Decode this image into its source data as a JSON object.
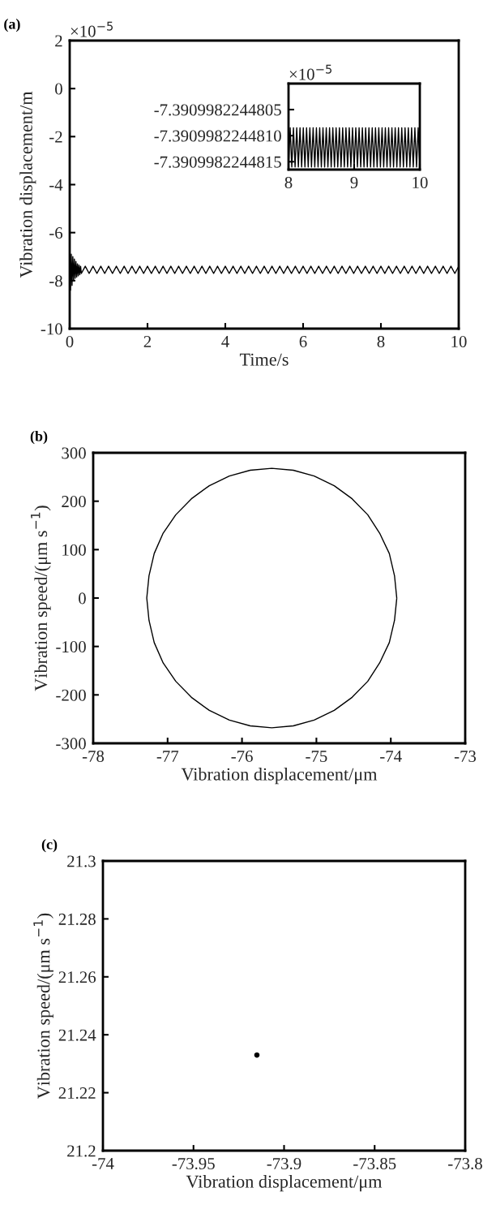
{
  "chart_data": [
    {
      "type": "line",
      "title": "(a)",
      "xlabel": "Time/s",
      "ylabel": "Vibration displacement/m",
      "annotations": [
        "×10$^{−5}$"
      ],
      "xlim": [
        0,
        10
      ],
      "xticks": [
        0,
        2,
        4,
        6,
        8,
        10
      ],
      "ylim": [
        -10,
        2
      ],
      "yticks": [
        -10,
        -8,
        -6,
        -4,
        -2,
        0,
        2
      ],
      "grid": false,
      "series": [
        {
          "color": "#000000",
          "x": [
            0,
            0.02,
            0.04,
            0.06,
            0.08,
            0.1,
            0.12,
            0.14,
            0.16,
            0.18,
            0.2,
            0.22,
            0.24,
            0.26,
            0.28,
            0.3,
            0.4,
            0.5,
            0.6,
            0.7,
            0.8,
            0.9,
            1.0,
            1.1,
            1.2,
            1.3,
            1.4,
            1.5,
            1.6,
            1.7,
            1.8,
            1.9,
            2.0,
            2.1,
            2.2,
            2.3,
            2.4,
            2.5,
            2.6,
            2.7,
            2.8,
            2.9,
            3.0,
            3.1,
            3.2,
            3.3,
            3.4,
            3.5,
            3.6,
            3.7,
            3.8,
            3.9,
            4.0,
            4.1,
            4.2,
            4.3,
            4.4,
            4.5,
            4.6,
            4.7,
            4.8,
            4.9,
            5.0,
            5.1,
            5.2,
            5.3,
            5.4,
            5.5,
            5.6,
            5.7,
            5.8,
            5.9,
            6.0,
            6.1,
            6.2,
            6.3,
            6.4,
            6.5,
            6.6,
            6.7,
            6.8,
            6.9,
            7.0,
            7.1,
            7.2,
            7.3,
            7.4,
            7.5,
            7.6,
            7.7,
            7.8,
            7.9,
            8.0,
            8.1,
            8.2,
            8.3,
            8.4,
            8.5,
            8.6,
            8.7,
            8.8,
            8.9,
            9.0,
            9.1,
            9.2,
            9.3,
            9.4,
            9.5,
            9.6,
            9.7,
            9.8,
            9.9,
            10.0
          ],
          "values": [
            -6.8,
            -8.4,
            -6.9,
            -8.2,
            -7.0,
            -8.0,
            -7.1,
            -7.9,
            -7.2,
            -7.85,
            -7.3,
            -7.8,
            -7.35,
            -7.75,
            -7.4,
            -7.7,
            -7.4,
            -7.7,
            -7.4,
            -7.7,
            -7.4,
            -7.7,
            -7.4,
            -7.7,
            -7.4,
            -7.7,
            -7.4,
            -7.7,
            -7.4,
            -7.7,
            -7.4,
            -7.7,
            -7.4,
            -7.7,
            -7.4,
            -7.7,
            -7.4,
            -7.7,
            -7.4,
            -7.7,
            -7.4,
            -7.7,
            -7.4,
            -7.7,
            -7.4,
            -7.7,
            -7.4,
            -7.7,
            -7.4,
            -7.7,
            -7.4,
            -7.7,
            -7.4,
            -7.7,
            -7.4,
            -7.7,
            -7.4,
            -7.7,
            -7.4,
            -7.7,
            -7.4,
            -7.7,
            -7.4,
            -7.7,
            -7.4,
            -7.7,
            -7.4,
            -7.7,
            -7.4,
            -7.7,
            -7.4,
            -7.7,
            -7.4,
            -7.7,
            -7.4,
            -7.7,
            -7.4,
            -7.7,
            -7.4,
            -7.7,
            -7.4,
            -7.7,
            -7.4,
            -7.7,
            -7.4,
            -7.7,
            -7.4,
            -7.7,
            -7.4,
            -7.7,
            -7.4,
            -7.7,
            -7.4,
            -7.7,
            -7.4,
            -7.7,
            -7.4,
            -7.7,
            -7.4,
            -7.7,
            -7.4,
            -7.7,
            -7.4,
            -7.7,
            -7.4,
            -7.7,
            -7.4,
            -7.7,
            -7.4,
            -7.7,
            -7.4,
            -7.7,
            -7.4
          ]
        }
      ]
    },
    {
      "type": "line",
      "annotations": [
        "×10$^{−5}$"
      ],
      "xlim": [
        8,
        10
      ],
      "xticks": [
        8,
        9,
        10
      ],
      "ylim": [
        -7.39099822448165,
        -7.39099822448
      ],
      "yticks": [
        {
          "value": -7.3909982244815,
          "label": "-7.3909982244815"
        },
        {
          "value": -7.390998224481,
          "label": "-7.3909982244810"
        },
        {
          "value": -7.3909982244805,
          "label": "-7.3909982244805"
        }
      ],
      "series": [
        {
          "color": "#000000",
          "x": [
            8.0,
            8.025,
            8.05,
            8.075,
            8.1,
            8.125,
            8.15,
            8.175,
            8.2,
            8.225,
            8.25,
            8.275,
            8.3,
            8.325,
            8.35,
            8.375,
            8.4,
            8.425,
            8.45,
            8.475,
            8.5,
            8.525,
            8.55,
            8.575,
            8.6,
            8.625,
            8.65,
            8.675,
            8.7,
            8.725,
            8.75,
            8.775,
            8.8,
            8.825,
            8.85,
            8.875,
            8.9,
            8.925,
            8.95,
            8.975,
            9.0,
            9.025,
            9.05,
            9.075,
            9.1,
            9.125,
            9.15,
            9.175,
            9.2,
            9.225,
            9.25,
            9.275,
            9.3,
            9.325,
            9.35,
            9.375,
            9.4,
            9.425,
            9.45,
            9.475,
            9.5,
            9.525,
            9.55,
            9.575,
            9.6,
            9.625,
            9.65,
            9.675,
            9.7,
            9.725,
            9.75,
            9.775,
            9.8,
            9.825,
            9.85,
            9.875,
            9.9,
            9.925,
            9.95,
            9.975,
            10.0
          ],
          "values": [
            -7.3909982244816,
            -7.39099822448085,
            -7.3909982244816,
            -7.39099822448085,
            -7.3909982244816,
            -7.39099822448085,
            -7.3909982244816,
            -7.39099822448085,
            -7.3909982244816,
            -7.39099822448085,
            -7.3909982244816,
            -7.39099822448085,
            -7.3909982244816,
            -7.39099822448085,
            -7.3909982244816,
            -7.39099822448085,
            -7.3909982244816,
            -7.39099822448085,
            -7.3909982244816,
            -7.39099822448085,
            -7.3909982244816,
            -7.39099822448085,
            -7.3909982244816,
            -7.39099822448085,
            -7.3909982244816,
            -7.39099822448085,
            -7.3909982244816,
            -7.39099822448085,
            -7.3909982244816,
            -7.39099822448085,
            -7.3909982244816,
            -7.39099822448085,
            -7.3909982244816,
            -7.39099822448085,
            -7.3909982244816,
            -7.39099822448085,
            -7.3909982244816,
            -7.39099822448085,
            -7.3909982244816,
            -7.39099822448085,
            -7.3909982244816,
            -7.39099822448085,
            -7.3909982244816,
            -7.39099822448085,
            -7.3909982244816,
            -7.39099822448085,
            -7.3909982244816,
            -7.39099822448085,
            -7.3909982244816,
            -7.39099822448085,
            -7.3909982244816,
            -7.39099822448085,
            -7.3909982244816,
            -7.39099822448085,
            -7.3909982244816,
            -7.39099822448085,
            -7.3909982244816,
            -7.39099822448085,
            -7.3909982244816,
            -7.39099822448085,
            -7.3909982244816,
            -7.39099822448085,
            -7.3909982244816,
            -7.39099822448085,
            -7.3909982244816,
            -7.39099822448085,
            -7.3909982244816,
            -7.39099822448085,
            -7.3909982244816,
            -7.39099822448085,
            -7.3909982244816,
            -7.39099822448085,
            -7.3909982244816,
            -7.39099822448085,
            -7.3909982244816,
            -7.39099822448085,
            -7.3909982244816,
            -7.39099822448085,
            -7.3909982244816,
            -7.39099822448085,
            -7.3909982244816
          ]
        }
      ]
    },
    {
      "type": "line",
      "title": "(b)",
      "xlabel": "Vibration displacement/μm",
      "ylabel": "Vibration speed/(μm s$^{−1}$)",
      "xlim": [
        -78,
        -73
      ],
      "xticks": [
        -78,
        -77,
        -76,
        -75,
        -74,
        -73
      ],
      "ylim": [
        -300,
        300
      ],
      "yticks": [
        -300,
        -200,
        -100,
        0,
        100,
        200,
        300
      ],
      "x": [
        -73.92,
        -73.95,
        -74.02,
        -74.15,
        -74.31,
        -74.52,
        -74.76,
        -75.03,
        -75.31,
        -75.6,
        -75.89,
        -76.17,
        -76.44,
        -76.68,
        -76.89,
        -77.06,
        -77.18,
        -77.25,
        -77.28,
        -77.25,
        -77.18,
        -77.06,
        -76.89,
        -76.68,
        -76.44,
        -76.17,
        -75.89,
        -75.6,
        -75.31,
        -75.03,
        -74.76,
        -74.52,
        -74.31,
        -74.15,
        -74.02,
        -73.95,
        -73.92
      ],
      "series": [
        {
          "color": "#000000",
          "values": [
            0,
            46,
            92,
            134,
            172,
            205,
            232,
            252,
            264,
            268,
            264,
            252,
            232,
            205,
            172,
            134,
            92,
            46,
            0,
            -46,
            -92,
            -134,
            -172,
            -205,
            -232,
            -252,
            -264,
            -268,
            -264,
            -252,
            -232,
            -205,
            -172,
            -134,
            -92,
            -46,
            -1
          ]
        }
      ]
    },
    {
      "type": "scatter",
      "title": "(c)",
      "xlabel": "Vibration displacement/μm",
      "ylabel": "Vibration speed/(μm s$^{−1}$)",
      "marker": "circle",
      "xlim": [
        -74,
        -73.8
      ],
      "xticks": [
        -74,
        -73.95,
        -73.9,
        -73.85,
        -73.8
      ],
      "ylim": [
        21.2,
        21.3
      ],
      "yticks": [
        21.2,
        21.22,
        21.24,
        21.26,
        21.28,
        21.3
      ],
      "series": [
        {
          "color": "#000000",
          "x": [
            -73.915
          ],
          "values": [
            21.233
          ]
        }
      ]
    }
  ]
}
